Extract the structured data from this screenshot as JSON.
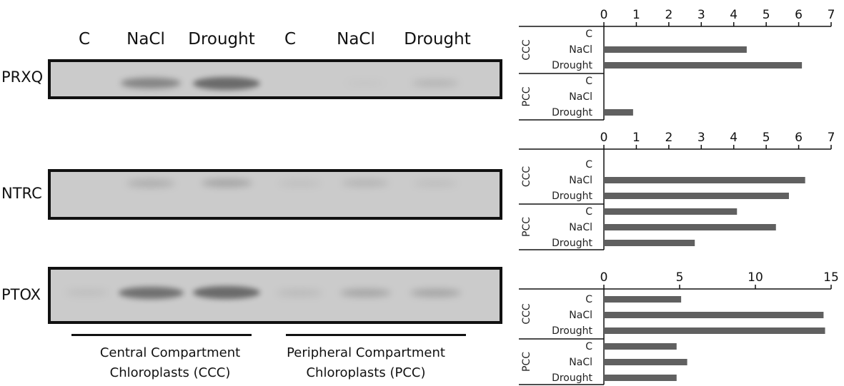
{
  "lanes": [
    "C",
    "NaCl",
    "Drought",
    "C",
    "NaCl",
    "Drought"
  ],
  "blots": [
    {
      "name": "PRXQ",
      "band_intensity": [
        0.0,
        0.55,
        0.75,
        0.0,
        0.05,
        0.2
      ]
    },
    {
      "name": "NTRC",
      "band_intensity": [
        0.0,
        0.25,
        0.3,
        0.1,
        0.2,
        0.12
      ]
    },
    {
      "name": "PTOX",
      "band_intensity": [
        0.12,
        0.7,
        0.75,
        0.15,
        0.3,
        0.3
      ]
    }
  ],
  "groups": [
    {
      "label_line1": "Central Compartment",
      "label_line2": "Chloroplasts (CCC)"
    },
    {
      "label_line1": "Peripheral Compartment",
      "label_line2": "Chloroplasts (PCC)"
    }
  ],
  "colors": {
    "bar": "#606060",
    "blot_bg": "#cbcbcb",
    "band": "#4a4a4a"
  },
  "chart_data": [
    {
      "type": "bar",
      "orientation": "horizontal",
      "protein": "PRXQ",
      "groups": [
        "CCC",
        "PCC"
      ],
      "categories": [
        "C",
        "NaCl",
        "Drought",
        "C",
        "NaCl",
        "Drought"
      ],
      "values": [
        0,
        4.4,
        6.1,
        0,
        0,
        0.9
      ],
      "xlim": [
        0,
        7
      ],
      "ticks": [
        0,
        1,
        2,
        3,
        4,
        5,
        6,
        7
      ]
    },
    {
      "type": "bar",
      "orientation": "horizontal",
      "protein": "NTRC",
      "groups": [
        "CCC",
        "PCC"
      ],
      "categories": [
        "C",
        "NaCl",
        "Drought",
        "C",
        "NaCl",
        "Drought"
      ],
      "values": [
        0,
        6.2,
        5.7,
        4.1,
        5.3,
        2.8
      ],
      "xlim": [
        0,
        7
      ],
      "ticks": [
        0,
        1,
        2,
        3,
        4,
        5,
        6,
        7
      ]
    },
    {
      "type": "bar",
      "orientation": "horizontal",
      "protein": "PTOX",
      "groups": [
        "CCC",
        "PCC"
      ],
      "categories": [
        "C",
        "NaCl",
        "Drought",
        "C",
        "NaCl",
        "Drought"
      ],
      "values": [
        5.1,
        14.5,
        14.6,
        4.8,
        5.5,
        4.8
      ],
      "xlim": [
        0,
        15
      ],
      "ticks": [
        0,
        5,
        10,
        15
      ]
    }
  ]
}
